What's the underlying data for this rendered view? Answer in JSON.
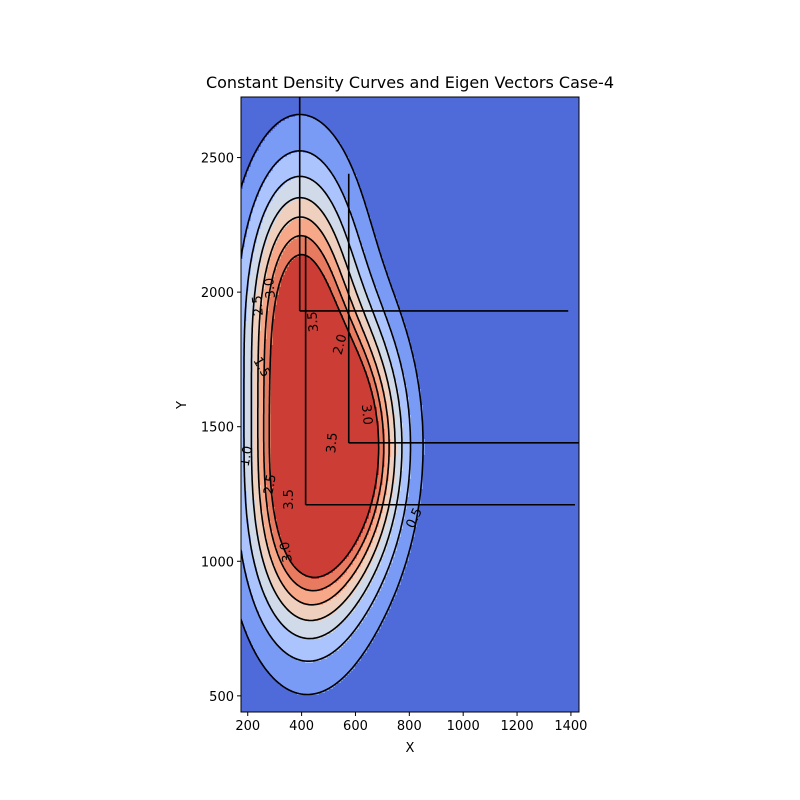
{
  "chart_data": {
    "type": "contour",
    "title": "Constant Density Curves and Eigen Vectors Case-4",
    "xlabel": "X",
    "ylabel": "Y",
    "xlim": [
      175,
      1430
    ],
    "ylim": [
      440,
      2725
    ],
    "xticks": [
      200,
      400,
      600,
      800,
      1000,
      1200,
      1400
    ],
    "yticks": [
      500,
      1000,
      1500,
      2000,
      2500
    ],
    "colors": {
      "background": "#4f6ad9",
      "fills": [
        "#7a9bf5",
        "#abc4fd",
        "#d1dae9",
        "#efcfbd",
        "#f6a889",
        "#e77a5f",
        "#cc3d36"
      ],
      "contour_line": "#000000"
    },
    "levels": [
      0.5,
      1.0,
      1.5,
      2.0,
      2.5,
      3.0,
      3.5
    ],
    "clusters": [
      {
        "mean": [
          393,
          1930
        ],
        "sx": 138,
        "sy": 360
      },
      {
        "mean": [
          575,
          1440
        ],
        "sx": 133,
        "sy": 300
      },
      {
        "mean": [
          415,
          1210
        ],
        "sx": 148,
        "sy": 345
      }
    ],
    "eigen_vectors": [
      {
        "origin": [
          393,
          1930
        ],
        "v1_end": [
          1390,
          1930
        ],
        "v2_end": [
          393,
          2725
        ]
      },
      {
        "origin": [
          575,
          1440
        ],
        "v1_end": [
          1430,
          1440
        ],
        "v2_end": [
          575,
          2440
        ]
      },
      {
        "origin": [
          415,
          1210
        ],
        "v1_end": [
          1415,
          1210
        ],
        "v2_end": [
          415,
          2210
        ]
      }
    ],
    "contour_labels": [
      {
        "text": "0.5",
        "x": 820,
        "y": 1160,
        "rotate": -65
      },
      {
        "text": "1.0",
        "x": 197,
        "y": 1390,
        "rotate": -80
      },
      {
        "text": "1.5",
        "x": 250,
        "y": 1720,
        "rotate": 60
      },
      {
        "text": "2.0",
        "x": 545,
        "y": 1805,
        "rotate": -75
      },
      {
        "text": "2.5",
        "x": 285,
        "y": 1285,
        "rotate": -80
      },
      {
        "text": "3.0",
        "x": 345,
        "y": 1035,
        "rotate": -100
      },
      {
        "text": "3.5",
        "x": 355,
        "y": 1230,
        "rotate": -90
      },
      {
        "text": "3.5",
        "x": 515,
        "y": 1440,
        "rotate": -85
      },
      {
        "text": "3.0",
        "x": 640,
        "y": 1545,
        "rotate": 85
      },
      {
        "text": "2.5",
        "x": 240,
        "y": 1950,
        "rotate": -95
      },
      {
        "text": "3.0",
        "x": 285,
        "y": 2015,
        "rotate": -95
      },
      {
        "text": "3.5",
        "x": 445,
        "y": 1890,
        "rotate": -95
      }
    ]
  }
}
